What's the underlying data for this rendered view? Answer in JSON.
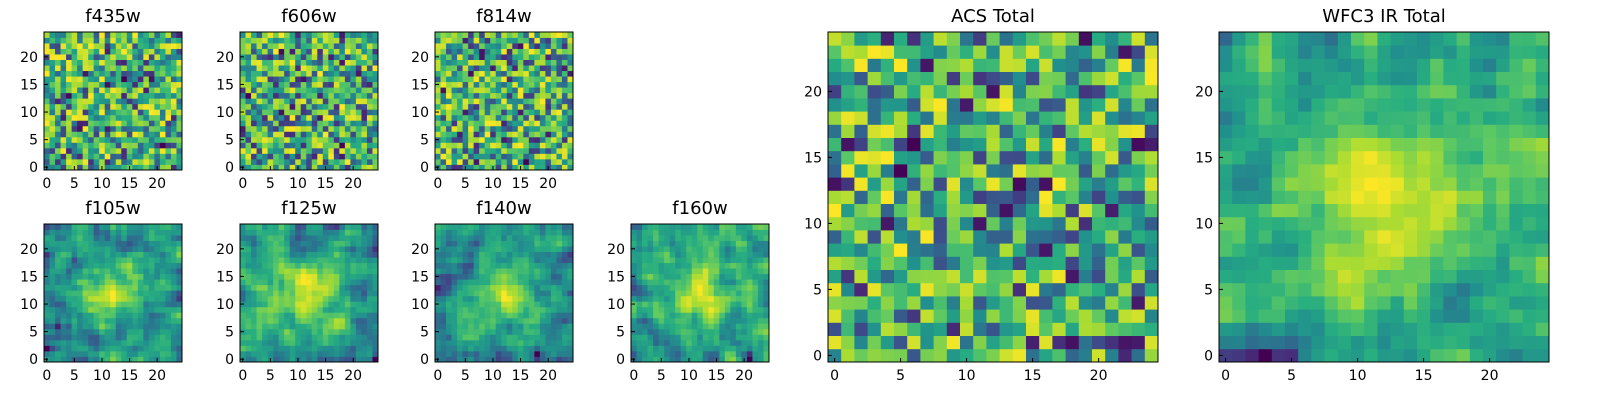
{
  "chart_data": [
    {
      "type": "heatmap",
      "title": "f435w",
      "grid_size": 25,
      "xticks": [
        "0",
        "5",
        "10",
        "15",
        "20"
      ],
      "yticks": [
        "0",
        "5",
        "10",
        "15",
        "20"
      ],
      "colormap": "viridis",
      "texture": "noisy",
      "seed": 11
    },
    {
      "type": "heatmap",
      "title": "f606w",
      "grid_size": 25,
      "xticks": [
        "0",
        "5",
        "10",
        "15",
        "20"
      ],
      "yticks": [
        "0",
        "5",
        "10",
        "15",
        "20"
      ],
      "colormap": "viridis",
      "texture": "noisy",
      "seed": 23
    },
    {
      "type": "heatmap",
      "title": "f814w",
      "grid_size": 25,
      "xticks": [
        "0",
        "5",
        "10",
        "15",
        "20"
      ],
      "yticks": [
        "0",
        "5",
        "10",
        "15",
        "20"
      ],
      "colormap": "viridis",
      "texture": "noisy",
      "seed": 37
    },
    {
      "type": "heatmap",
      "title": "f105w",
      "grid_size": 25,
      "xticks": [
        "0",
        "5",
        "10",
        "15",
        "20"
      ],
      "yticks": [
        "0",
        "5",
        "10",
        "15",
        "20"
      ],
      "colormap": "viridis",
      "texture": "smooth",
      "seed": 41
    },
    {
      "type": "heatmap",
      "title": "f125w",
      "grid_size": 25,
      "xticks": [
        "0",
        "5",
        "10",
        "15",
        "20"
      ],
      "yticks": [
        "0",
        "5",
        "10",
        "15",
        "20"
      ],
      "colormap": "viridis",
      "texture": "smooth",
      "seed": 53
    },
    {
      "type": "heatmap",
      "title": "f140w",
      "grid_size": 25,
      "xticks": [
        "0",
        "5",
        "10",
        "15",
        "20"
      ],
      "yticks": [
        "0",
        "5",
        "10",
        "15",
        "20"
      ],
      "colormap": "viridis",
      "texture": "smooth",
      "seed": 67
    },
    {
      "type": "heatmap",
      "title": "f160w",
      "grid_size": 25,
      "xticks": [
        "0",
        "5",
        "10",
        "15",
        "20"
      ],
      "yticks": [
        "0",
        "5",
        "10",
        "15",
        "20"
      ],
      "colormap": "viridis",
      "texture": "smooth",
      "seed": 79
    },
    {
      "type": "heatmap",
      "title": "ACS Total",
      "grid_size": 25,
      "xticks": [
        "0",
        "5",
        "10",
        "15",
        "20"
      ],
      "yticks": [
        "0",
        "5",
        "10",
        "15",
        "20"
      ],
      "colormap": "viridis",
      "texture": "noisy",
      "seed": 83
    },
    {
      "type": "heatmap",
      "title": "WFC3 IR Total",
      "grid_size": 25,
      "xticks": [
        "0",
        "5",
        "10",
        "15",
        "20"
      ],
      "yticks": [
        "0",
        "5",
        "10",
        "15",
        "20"
      ],
      "colormap": "viridis",
      "texture": "smooth",
      "seed": 97
    }
  ]
}
